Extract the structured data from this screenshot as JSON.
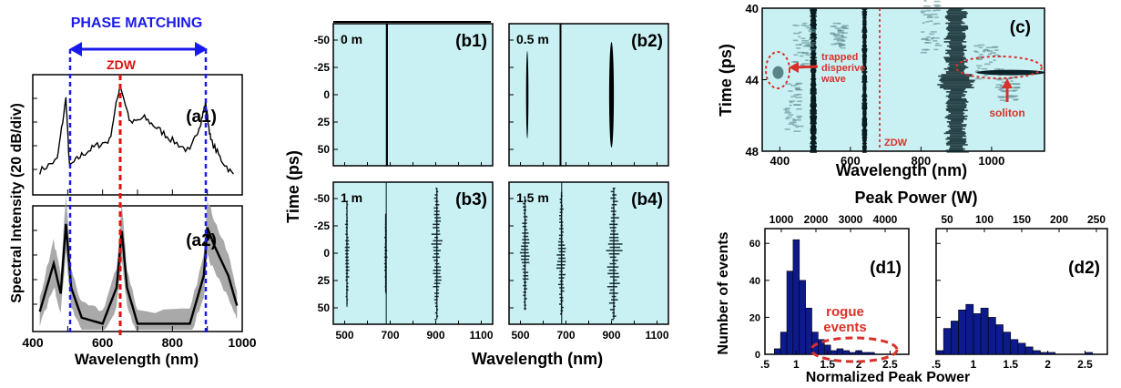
{
  "colors": {
    "phase_blue": "#1a1aee",
    "zdw_red": "#dd1111",
    "annot_red": "#d9312a",
    "spectro_bg": "#c9f1f4",
    "hist_bar": "#0d1a8c",
    "gray_band": "#9a9a9a"
  },
  "panel_a": {
    "header": "PHASE MATCHING",
    "zdw": "ZDW",
    "ylabel": "Spectral Intensity (20 dB/div)",
    "xlabel": "Wavelength (nm)",
    "xticks": [
      "400",
      "600",
      "800",
      "1000"
    ],
    "a1_label": "(a1)",
    "a2_label": "(a2)"
  },
  "panel_b": {
    "ylabel": "Time (ps)",
    "xlabel": "Wavelength (nm)",
    "yticks": [
      "-50",
      "-25",
      "0",
      "25",
      "50"
    ],
    "xticks": [
      "500",
      "700",
      "900",
      "1100"
    ],
    "subplots": [
      {
        "tag": "(b1)",
        "dist": "0 m"
      },
      {
        "tag": "(b2)",
        "dist": "0.5 m"
      },
      {
        "tag": "(b3)",
        "dist": "1 m"
      },
      {
        "tag": "(b4)",
        "dist": "1.5 m"
      }
    ]
  },
  "panel_c": {
    "tag": "(c)",
    "ylabel": "Time (ps)",
    "xlabel": "Wavelength (nm)",
    "yticks": [
      "40",
      "44",
      "48"
    ],
    "xticks": [
      "400",
      "600",
      "800",
      "1000"
    ],
    "zdw": "ZDW",
    "trapped_line1": "trapped",
    "trapped_line2": "disperive",
    "trapped_line3": "wave",
    "soliton": "soliton"
  },
  "panel_d": {
    "top_label": "Peak Power (W)",
    "ylabel": "Number of events",
    "xlabel": "Normalized Peak Power",
    "d1_tag": "(d1)",
    "d2_tag": "(d2)",
    "rogue_line1": "rogue",
    "rogue_line2": "events",
    "d1_top_ticks": [
      "1000",
      "2000",
      "3000",
      "4000"
    ],
    "d2_top_ticks": [
      "50",
      "100",
      "150",
      "200",
      "250"
    ],
    "yticks": [
      "0",
      "20",
      "40",
      "60"
    ],
    "d1_xticks": [
      ".5",
      "1",
      "1.5",
      "2",
      "2.5"
    ],
    "d2_xticks": [
      ".5",
      "1",
      "1.5",
      "2",
      "2.5"
    ]
  },
  "chart_data": [
    {
      "type": "line",
      "id": "a1",
      "xlabel": "Wavelength (nm)",
      "ylabel": "Spectral Intensity (20 dB/div)",
      "xlim": [
        400,
        1000
      ],
      "x": [
        420,
        470,
        495,
        505,
        540,
        580,
        620,
        650,
        680,
        720,
        760,
        800,
        850,
        880,
        895,
        910,
        940,
        980
      ],
      "y": [
        0.18,
        0.28,
        0.82,
        0.22,
        0.32,
        0.4,
        0.45,
        0.95,
        0.6,
        0.65,
        0.55,
        0.45,
        0.35,
        0.6,
        0.78,
        0.45,
        0.28,
        0.12
      ]
    },
    {
      "type": "area",
      "id": "a2",
      "xlabel": "Wavelength (nm)",
      "xlim": [
        400,
        1000
      ],
      "x": [
        420,
        460,
        480,
        495,
        510,
        540,
        600,
        640,
        655,
        670,
        700,
        850,
        890,
        900,
        920,
        960,
        990
      ],
      "y": [
        0.15,
        0.55,
        0.3,
        0.88,
        0.35,
        0.1,
        0.05,
        0.35,
        0.82,
        0.35,
        0.05,
        0.05,
        0.45,
        0.85,
        0.7,
        0.45,
        0.15
      ]
    },
    {
      "type": "heatmap",
      "id": "b",
      "xlabel": "Wavelength (nm)",
      "ylabel": "Time (ps)",
      "xlim": [
        450,
        1150
      ],
      "ylim": [
        -65,
        65
      ],
      "subplots": [
        "(b1)",
        "(b2)",
        "(b3)",
        "(b4)"
      ]
    },
    {
      "type": "heatmap",
      "id": "c",
      "xlabel": "Wavelength (nm)",
      "ylabel": "Time (ps)",
      "xlim": [
        350,
        1150
      ],
      "ylim": [
        40,
        48
      ]
    },
    {
      "type": "bar",
      "id": "d1",
      "xlabel": "Normalized Peak Power",
      "ylabel": "Number of events",
      "xlim": [
        0.5,
        2.8
      ],
      "ylim": [
        0,
        68
      ],
      "categories": [
        0.7,
        0.8,
        0.9,
        1.0,
        1.1,
        1.2,
        1.3,
        1.4,
        1.5,
        1.6,
        1.7,
        1.8,
        1.9,
        2.0,
        2.1,
        2.2
      ],
      "values": [
        3,
        12,
        45,
        62,
        40,
        25,
        12,
        8,
        5,
        2,
        3,
        2,
        1,
        2,
        1,
        1
      ]
    },
    {
      "type": "bar",
      "id": "d2",
      "xlabel": "Normalized Peak Power",
      "xlim": [
        0.5,
        2.8
      ],
      "ylim": [
        0,
        68
      ],
      "categories": [
        0.55,
        0.65,
        0.75,
        0.85,
        0.95,
        1.05,
        1.15,
        1.25,
        1.35,
        1.45,
        1.55,
        1.65,
        1.75,
        1.85,
        1.95,
        2.05,
        2.55
      ],
      "values": [
        2,
        14,
        18,
        24,
        27,
        22,
        25,
        20,
        16,
        12,
        8,
        6,
        4,
        2,
        1,
        1,
        1
      ]
    }
  ]
}
